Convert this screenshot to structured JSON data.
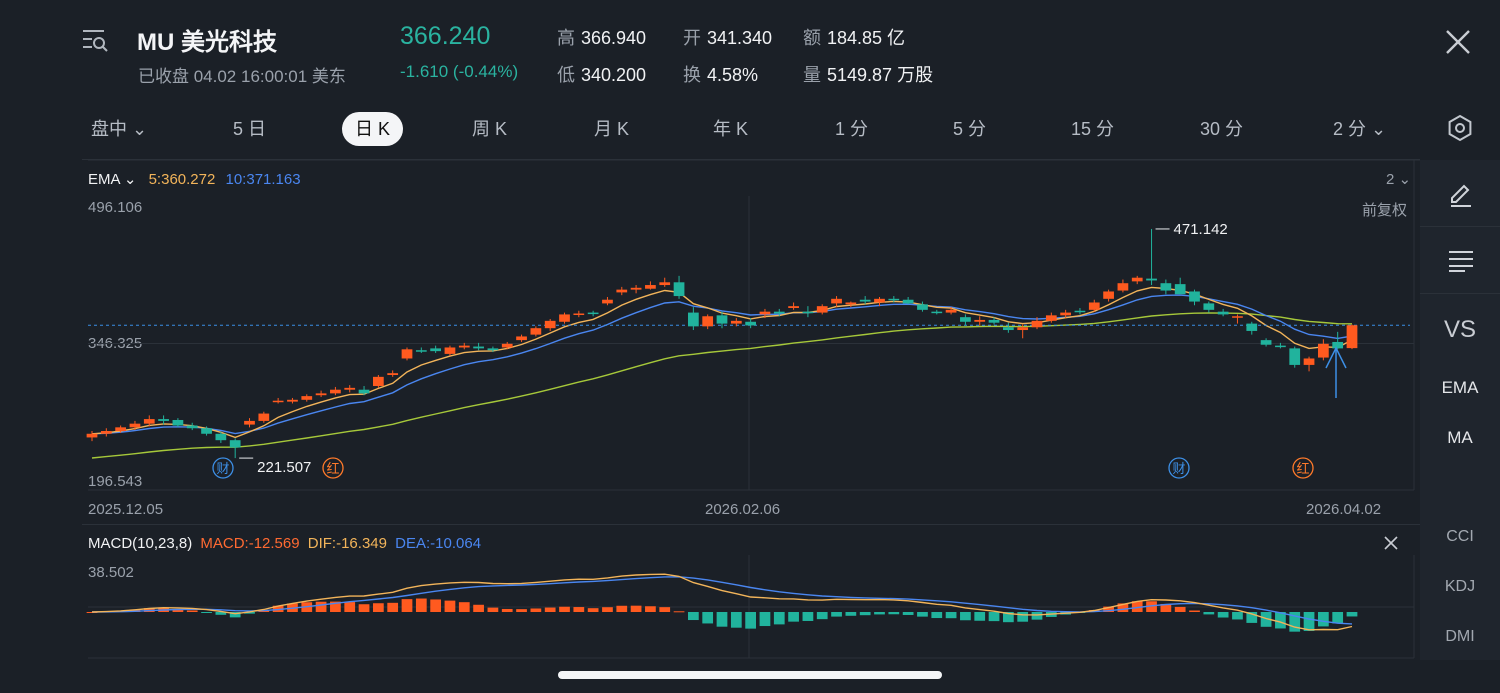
{
  "header": {
    "title": "MU 美光科技",
    "subtitle": "已收盘 04.02 16:00:01 美东",
    "price": "366.240",
    "change": "-1.610 (-0.44%)",
    "stats": [
      {
        "label": "高",
        "value": "366.940"
      },
      {
        "label": "开",
        "value": "341.340"
      },
      {
        "label": "额",
        "value": "184.85 亿"
      },
      {
        "label": "低",
        "value": "340.200"
      },
      {
        "label": "换",
        "value": "4.58%"
      },
      {
        "label": "量",
        "value": "5149.87 万股"
      }
    ]
  },
  "icons": {
    "menu": "list-search-icon",
    "close": "close-icon",
    "settings": "hexagon-settings-icon",
    "draw": "pencil-icon",
    "lines": "lines-icon"
  },
  "tabs": [
    "盘中",
    "5 日",
    "日 K",
    "周 K",
    "月 K",
    "年 K",
    "1 分",
    "5 分",
    "15 分",
    "30 分",
    "2 分"
  ],
  "active_tab": "日 K",
  "main_chart": {
    "indicator": "EMA",
    "ema5": "5:360.272",
    "ema10": "10:371.163",
    "period_selector": "2",
    "adjust": "前复权",
    "y_top": "496.106",
    "y_mid": "346.325",
    "y_bottom": "196.543",
    "high_label": "471.142",
    "low_label": "221.507",
    "dates": [
      "2025.12.05",
      "2026.02.06",
      "2026.04.02"
    ],
    "markers": [
      {
        "text": "财",
        "kind": "earnings"
      },
      {
        "text": "红",
        "kind": "dividend"
      },
      {
        "text": "财",
        "kind": "earnings"
      },
      {
        "text": "红",
        "kind": "dividend"
      }
    ]
  },
  "macd": {
    "title": "MACD(10,23,8)",
    "macd": "MACD:-12.569",
    "dif": "DIF:-16.349",
    "dea": "DEA:-10.064",
    "y_top": "38.502"
  },
  "right_panel": [
    "VS",
    "EMA",
    "MA",
    "CCI",
    "KDJ",
    "DMI"
  ],
  "colors": {
    "up": "#ff5a1f",
    "down": "#21b39d",
    "ema5": "#f2b45a",
    "ema10": "#4a86f0",
    "ema_long": "#a6c83a",
    "background": "#1b2027"
  },
  "chart_data": {
    "type": "candlestick",
    "title": "MU 美光科技",
    "ylim": [
      196.543,
      496.106
    ],
    "candles": [
      [
        244.0,
        251.0,
        240.0,
        248.0
      ],
      [
        248.0,
        254.0,
        245.0,
        251.0
      ],
      [
        251.0,
        257.0,
        249.0,
        255.0
      ],
      [
        255.0,
        262.0,
        252.0,
        259.0
      ],
      [
        259.0,
        268.0,
        256.0,
        264.0
      ],
      [
        264.0,
        268.0,
        258.0,
        262.0
      ],
      [
        263.0,
        265.0,
        255.0,
        257.0
      ],
      [
        257.0,
        260.0,
        252.0,
        254.0
      ],
      [
        254.0,
        256.0,
        246.0,
        248.0
      ],
      [
        248.0,
        250.0,
        238.0,
        241.0
      ],
      [
        241.0,
        243.0,
        221.5,
        233.0
      ],
      [
        258.0,
        265.0,
        255.0,
        262.0
      ],
      [
        262.0,
        272.0,
        260.0,
        270.0
      ],
      [
        283.0,
        287.0,
        281.0,
        284.0
      ],
      [
        283.0,
        287.0,
        281.0,
        285.0
      ],
      [
        285.0,
        291.0,
        283.0,
        289.0
      ],
      [
        290.0,
        295.0,
        288.0,
        292.0
      ],
      [
        292.0,
        299.0,
        290.0,
        296.0
      ],
      [
        296.0,
        301.0,
        293.0,
        298.0
      ],
      [
        296.0,
        300.0,
        290.0,
        292.0
      ],
      [
        300.0,
        312.0,
        298.0,
        310.0
      ],
      [
        312.0,
        317.0,
        310.0,
        314.0
      ],
      [
        330.0,
        342.0,
        328.0,
        340.0
      ],
      [
        339.0,
        342.0,
        336.0,
        338.0
      ],
      [
        341.0,
        344.0,
        336.0,
        338.0
      ],
      [
        335.0,
        344.0,
        333.0,
        342.0
      ],
      [
        342.0,
        347.0,
        340.0,
        344.0
      ],
      [
        343.0,
        347.0,
        339.0,
        341.0
      ],
      [
        341.0,
        343.0,
        337.0,
        339.0
      ],
      [
        342.0,
        348.0,
        340.0,
        346.0
      ],
      [
        350.0,
        356.0,
        348.0,
        354.0
      ],
      [
        356.0,
        365.0,
        354.0,
        363.0
      ],
      [
        363.0,
        373.0,
        360.0,
        371.0
      ],
      [
        370.0,
        380.0,
        368.0,
        378.0
      ],
      [
        378.0,
        382.0,
        375.0,
        379.0
      ],
      [
        380.0,
        382.0,
        376.0,
        379.0
      ],
      [
        390.0,
        397.0,
        388.0,
        394.0
      ],
      [
        402.0,
        408.0,
        399.0,
        405.0
      ],
      [
        405.0,
        410.0,
        401.0,
        407.0
      ],
      [
        406.0,
        414.0,
        405.0,
        410.0
      ],
      [
        410.0,
        418.0,
        408.0,
        413.0
      ],
      [
        413.0,
        420.0,
        395.0,
        398.0
      ],
      [
        380.0,
        386.0,
        361.0,
        365.0
      ],
      [
        365.0,
        378.0,
        362.0,
        376.0
      ],
      [
        377.0,
        381.0,
        363.0,
        368.0
      ],
      [
        368.0,
        374.0,
        365.0,
        371.0
      ],
      [
        370.0,
        374.0,
        363.0,
        366.0
      ],
      [
        378.0,
        384.0,
        374.0,
        381.0
      ],
      [
        381.0,
        384.0,
        376.0,
        379.0
      ],
      [
        385.0,
        391.0,
        383.0,
        387.0
      ],
      [
        381.0,
        387.0,
        375.0,
        380.0
      ],
      [
        380.0,
        389.0,
        378.0,
        387.0
      ],
      [
        390.0,
        398.0,
        386.0,
        395.0
      ],
      [
        389.0,
        392.0,
        386.0,
        391.0
      ],
      [
        394.0,
        398.0,
        389.0,
        392.0
      ],
      [
        391.0,
        397.0,
        387.0,
        395.0
      ],
      [
        395.0,
        398.0,
        391.0,
        394.0
      ],
      [
        394.0,
        397.0,
        389.0,
        390.0
      ],
      [
        389.0,
        392.0,
        381.0,
        383.0
      ],
      [
        381.0,
        383.0,
        378.0,
        380.0
      ],
      [
        380.0,
        386.0,
        378.0,
        383.0
      ],
      [
        375.0,
        378.0,
        366.0,
        370.0
      ],
      [
        370.0,
        376.0,
        366.0,
        372.0
      ],
      [
        372.0,
        375.0,
        367.0,
        369.0
      ],
      [
        364.0,
        369.0,
        358.0,
        361.0
      ],
      [
        361.0,
        367.0,
        352.0,
        364.0
      ],
      [
        364.0,
        375.0,
        362.0,
        371.0
      ],
      [
        371.0,
        380.0,
        369.0,
        377.0
      ],
      [
        377.0,
        383.0,
        374.0,
        380.0
      ],
      [
        382.0,
        385.0,
        378.0,
        381.0
      ],
      [
        383.0,
        394.0,
        381.0,
        391.0
      ],
      [
        395.0,
        405.0,
        392.0,
        403.0
      ],
      [
        404.0,
        416.0,
        402.0,
        412.0
      ],
      [
        414.0,
        420.0,
        411.0,
        418.0
      ],
      [
        417.0,
        471.1,
        410.0,
        415.0
      ],
      [
        412.0,
        416.0,
        400.0,
        404.0
      ],
      [
        411.0,
        418.0,
        402.0,
        400.0
      ],
      [
        403.0,
        405.0,
        388.0,
        392.0
      ],
      [
        390.0,
        392.0,
        380.0,
        383.0
      ],
      [
        381.0,
        384.0,
        376.0,
        378.0
      ],
      [
        376.0,
        378.0,
        368.0,
        376.0
      ],
      [
        368.0,
        370.0,
        356.0,
        360.0
      ],
      [
        350.0,
        352.0,
        343.0,
        345.0
      ],
      [
        344.0,
        347.0,
        341.0,
        343.0
      ],
      [
        341.0,
        343.0,
        320.0,
        323.0
      ],
      [
        323.0,
        332.0,
        316.0,
        330.0
      ],
      [
        331.0,
        351.0,
        328.0,
        346.0
      ],
      [
        348.0,
        359.0,
        340.0,
        341.0
      ],
      [
        341.3,
        366.9,
        340.2,
        366.2
      ]
    ]
  }
}
